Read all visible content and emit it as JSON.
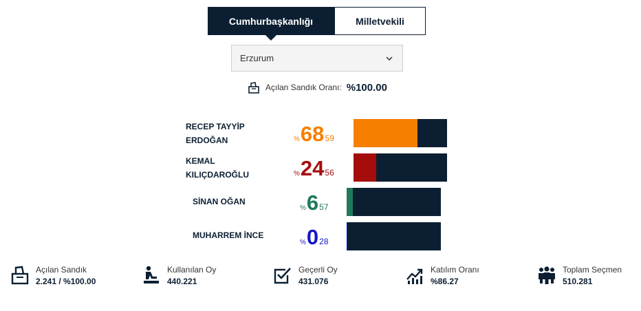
{
  "tabs": [
    {
      "label": "Cumhurbaşkanlığı",
      "active": true
    },
    {
      "label": "Milletvekili",
      "active": false
    }
  ],
  "province_select": {
    "value": "Erzurum",
    "icon": "chevron-down-icon"
  },
  "sandik_orani": {
    "label": "Açılan Sandık Oranı:",
    "value": "%100.00",
    "icon": "ballot-box-icon"
  },
  "candidates": [
    {
      "name": "RECEP TAYYİP\nERDOĞAN",
      "pct_symbol": "%",
      "pct_int": "68",
      "pct_dec": "59",
      "share": 68.59,
      "color": "#f77f00",
      "text_color": "#f77f00"
    },
    {
      "name": "KEMAL\nKILIÇDAROĞLU",
      "pct_symbol": "%",
      "pct_int": "24",
      "pct_dec": "56",
      "share": 24.56,
      "color": "#a50d0d",
      "text_color": "#a50d0d"
    },
    {
      "name": "SİNAN OĞAN",
      "pct_symbol": "%",
      "pct_int": "6",
      "pct_dec": "57",
      "share": 6.57,
      "color": "#1f7a5a",
      "text_color": "#1f7a5a"
    },
    {
      "name": "MUHARREM İNCE",
      "pct_symbol": "%",
      "pct_int": "0",
      "pct_dec": "28",
      "share": 0.28,
      "color": "#1414c8",
      "text_color": "#1414c8"
    }
  ],
  "bar_background_color": "#0c1f32",
  "stats": [
    {
      "label": "Açılan Sandık",
      "value": "2.241 / %100.00",
      "icon": "ballot-box-icon"
    },
    {
      "label": "Kullanılan Oy",
      "value": "440.221",
      "icon": "voting-person-icon"
    },
    {
      "label": "Geçerli Oy",
      "value": "431.076",
      "icon": "checkbox-icon"
    },
    {
      "label": "Katılım Oranı",
      "value": "%86.27",
      "icon": "chart-trend-icon"
    },
    {
      "label": "Toplam Seçmen",
      "value": "510.281",
      "icon": "people-group-icon"
    }
  ]
}
